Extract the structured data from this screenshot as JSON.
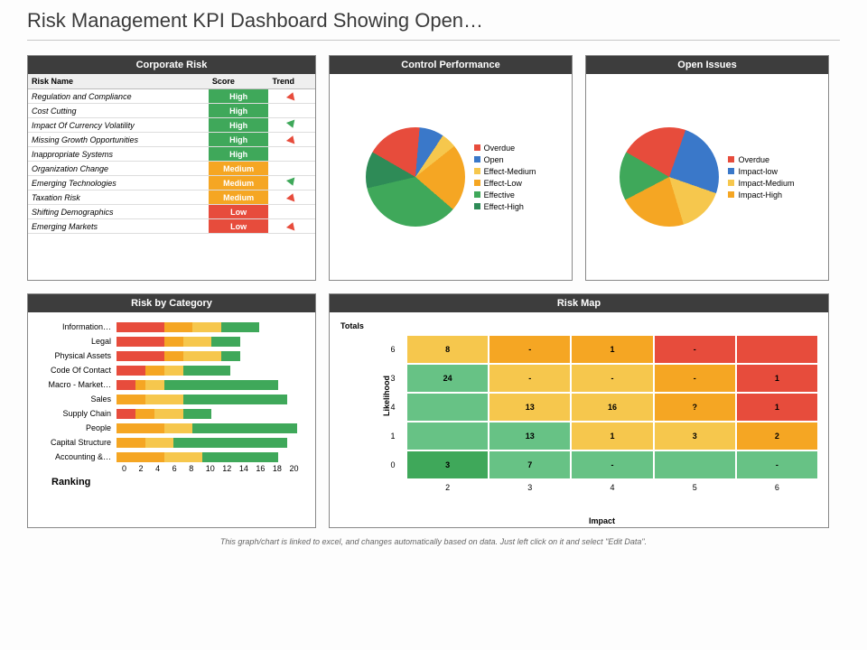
{
  "page_title": "Risk Management KPI Dashboard Showing Open…",
  "footer": "This graph/chart is linked to excel, and changes automatically based on data. Just left click on it and select \"Edit Data\".",
  "colors": {
    "high": "#3fa85a",
    "medium": "#f5a623",
    "low": "#e74c3c",
    "header": "#3d3d3d",
    "green_light": "#67c285",
    "yellow": "#f6c74d",
    "orange": "#f5a623",
    "red": "#e74c3c",
    "blue": "#3a78c9"
  },
  "corporate_risk": {
    "title": "Corporate Risk",
    "columns": [
      "Risk Name",
      "Score",
      "Trend"
    ],
    "rows": [
      {
        "name": "Regulation and Compliance",
        "score": "High",
        "trend": "up"
      },
      {
        "name": "Cost Cutting",
        "score": "High",
        "trend": "flat"
      },
      {
        "name": "Impact Of Currency Volatility",
        "score": "High",
        "trend": "down"
      },
      {
        "name": "Missing Growth Opportunities",
        "score": "High",
        "trend": "up"
      },
      {
        "name": "Inappropriate Systems",
        "score": "High",
        "trend": "flat"
      },
      {
        "name": "Organization Change",
        "score": "Medium",
        "trend": "flat"
      },
      {
        "name": "Emerging Technologies",
        "score": "Medium",
        "trend": "down"
      },
      {
        "name": "Taxation Risk",
        "score": "Medium",
        "trend": "up"
      },
      {
        "name": "Shifting Demographics",
        "score": "Low",
        "trend": "flat"
      },
      {
        "name": "Emerging Markets",
        "score": "Low",
        "trend": "up"
      }
    ]
  },
  "control_performance": {
    "title": "Control Performance",
    "slices": [
      {
        "label": "Overdue",
        "color": "#e74c3c",
        "value": 18
      },
      {
        "label": "Open",
        "color": "#3a78c9",
        "value": 8
      },
      {
        "label": "Effect-Medium",
        "color": "#f6c74d",
        "value": 5
      },
      {
        "label": "Effect-Low",
        "color": "#f5a623",
        "value": 22
      },
      {
        "label": "Effective",
        "color": "#3fa85a",
        "value": 35
      },
      {
        "label": "Effect-High",
        "color": "#2e8b57",
        "value": 12
      }
    ]
  },
  "open_issues": {
    "title": "Open Issues",
    "slices": [
      {
        "label": "Overdue",
        "color": "#e74c3c",
        "value": 22
      },
      {
        "label": "Impact-low",
        "color": "#3a78c9",
        "value": 25
      },
      {
        "label": "Impact-Medium",
        "color": "#f6c74d",
        "value": 15
      },
      {
        "label": "Impact-High",
        "color": "#f5a623",
        "value": 22
      },
      {
        "label": "",
        "color": "#3fa85a",
        "value": 16
      }
    ]
  },
  "risk_by_category": {
    "title": "Risk by Category",
    "x_max": 20,
    "x_ticks": [
      0,
      2,
      4,
      6,
      8,
      10,
      12,
      14,
      16,
      18,
      20
    ],
    "ranking_label": "Ranking",
    "rows": [
      {
        "label": "Information…",
        "segs": [
          {
            "c": "#e74c3c",
            "v": 5
          },
          {
            "c": "#f5a623",
            "v": 3
          },
          {
            "c": "#f6c74d",
            "v": 3
          },
          {
            "c": "#3fa85a",
            "v": 4
          }
        ]
      },
      {
        "label": "Legal",
        "segs": [
          {
            "c": "#e74c3c",
            "v": 5
          },
          {
            "c": "#f5a623",
            "v": 2
          },
          {
            "c": "#f6c74d",
            "v": 3
          },
          {
            "c": "#3fa85a",
            "v": 3
          }
        ]
      },
      {
        "label": "Physical Assets",
        "segs": [
          {
            "c": "#e74c3c",
            "v": 5
          },
          {
            "c": "#f5a623",
            "v": 2
          },
          {
            "c": "#f6c74d",
            "v": 4
          },
          {
            "c": "#3fa85a",
            "v": 2
          }
        ]
      },
      {
        "label": "Code Of Contact",
        "segs": [
          {
            "c": "#e74c3c",
            "v": 3
          },
          {
            "c": "#f5a623",
            "v": 2
          },
          {
            "c": "#f6c74d",
            "v": 2
          },
          {
            "c": "#3fa85a",
            "v": 5
          }
        ]
      },
      {
        "label": "Macro - Market…",
        "segs": [
          {
            "c": "#e74c3c",
            "v": 2
          },
          {
            "c": "#f5a623",
            "v": 1
          },
          {
            "c": "#f6c74d",
            "v": 2
          },
          {
            "c": "#3fa85a",
            "v": 12
          }
        ]
      },
      {
        "label": "Sales",
        "segs": [
          {
            "c": "#f5a623",
            "v": 3
          },
          {
            "c": "#f6c74d",
            "v": 4
          },
          {
            "c": "#3fa85a",
            "v": 11
          }
        ]
      },
      {
        "label": "Supply Chain",
        "segs": [
          {
            "c": "#e74c3c",
            "v": 2
          },
          {
            "c": "#f5a623",
            "v": 2
          },
          {
            "c": "#f6c74d",
            "v": 3
          },
          {
            "c": "#3fa85a",
            "v": 3
          }
        ]
      },
      {
        "label": "People",
        "segs": [
          {
            "c": "#f5a623",
            "v": 5
          },
          {
            "c": "#f6c74d",
            "v": 3
          },
          {
            "c": "#3fa85a",
            "v": 11
          }
        ]
      },
      {
        "label": "Capital Structure",
        "segs": [
          {
            "c": "#f5a623",
            "v": 3
          },
          {
            "c": "#f6c74d",
            "v": 3
          },
          {
            "c": "#3fa85a",
            "v": 12
          }
        ]
      },
      {
        "label": "Accounting &…",
        "segs": [
          {
            "c": "#f5a623",
            "v": 5
          },
          {
            "c": "#f6c74d",
            "v": 4
          },
          {
            "c": "#3fa85a",
            "v": 8
          }
        ]
      }
    ]
  },
  "risk_map": {
    "title": "Risk Map",
    "totals_label": "Totals",
    "totals_colors": [
      "#e74c3c",
      "#f5a623",
      "#3fa85a",
      "#3fa85a",
      "#3fa85a",
      "#67c285"
    ],
    "y_label": "Likelihood",
    "x_label": "Impact",
    "y_ticks": [
      6,
      3,
      4,
      1,
      0
    ],
    "x_ticks": [
      2,
      3,
      4,
      5,
      6
    ],
    "cells": [
      [
        {
          "v": "8",
          "c": "#f6c74d"
        },
        {
          "v": "-",
          "c": "#f5a623"
        },
        {
          "v": "1",
          "c": "#f5a623"
        },
        {
          "v": "-",
          "c": "#e74c3c"
        },
        {
          "v": "",
          "c": "#e74c3c"
        }
      ],
      [
        {
          "v": "24",
          "c": "#67c285"
        },
        {
          "v": "-",
          "c": "#f6c74d"
        },
        {
          "v": "-",
          "c": "#f6c74d"
        },
        {
          "v": "-",
          "c": "#f5a623"
        },
        {
          "v": "1",
          "c": "#e74c3c"
        }
      ],
      [
        {
          "v": "",
          "c": "#67c285"
        },
        {
          "v": "13",
          "c": "#f6c74d"
        },
        {
          "v": "16",
          "c": "#f6c74d"
        },
        {
          "v": "?",
          "c": "#f5a623"
        },
        {
          "v": "1",
          "c": "#e74c3c"
        }
      ],
      [
        {
          "v": "",
          "c": "#67c285"
        },
        {
          "v": "13",
          "c": "#67c285"
        },
        {
          "v": "1",
          "c": "#f6c74d"
        },
        {
          "v": "3",
          "c": "#f6c74d"
        },
        {
          "v": "2",
          "c": "#f5a623"
        }
      ],
      [
        {
          "v": "3",
          "c": "#3fa85a"
        },
        {
          "v": "7",
          "c": "#67c285"
        },
        {
          "v": "-",
          "c": "#67c285"
        },
        {
          "v": "",
          "c": "#67c285"
        },
        {
          "v": "-",
          "c": "#67c285"
        }
      ]
    ]
  }
}
